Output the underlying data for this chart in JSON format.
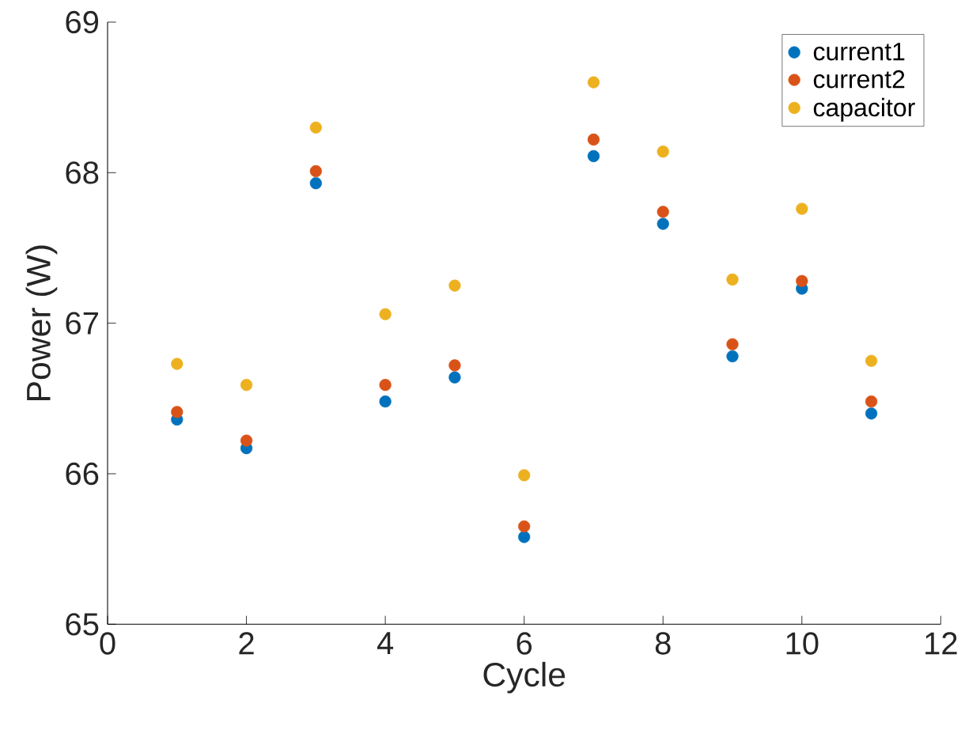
{
  "chart_data": {
    "type": "scatter",
    "xlabel": "Cycle",
    "ylabel": "Power (W)",
    "x": [
      1,
      2,
      3,
      4,
      5,
      6,
      7,
      8,
      9,
      10,
      11
    ],
    "xlim": [
      0,
      12
    ],
    "xticks": [
      0,
      2,
      4,
      6,
      8,
      10,
      12
    ],
    "ylim": [
      65,
      69
    ],
    "yticks": [
      65,
      66,
      67,
      68,
      69
    ],
    "marker": "circle",
    "legend": "top right",
    "series": [
      {
        "name": "current1",
        "color": "#0072bd",
        "values": [
          66.36,
          66.17,
          67.93,
          66.48,
          66.64,
          65.58,
          68.11,
          67.66,
          66.78,
          67.23,
          66.4
        ]
      },
      {
        "name": "current2",
        "color": "#d95319",
        "values": [
          66.41,
          66.22,
          68.01,
          66.59,
          66.72,
          65.65,
          68.22,
          67.74,
          66.86,
          67.28,
          66.48
        ]
      },
      {
        "name": "capacitor",
        "color": "#edb120",
        "values": [
          66.73,
          66.59,
          68.3,
          67.06,
          67.25,
          65.99,
          68.6,
          68.14,
          67.29,
          67.76,
          66.75
        ]
      }
    ]
  }
}
